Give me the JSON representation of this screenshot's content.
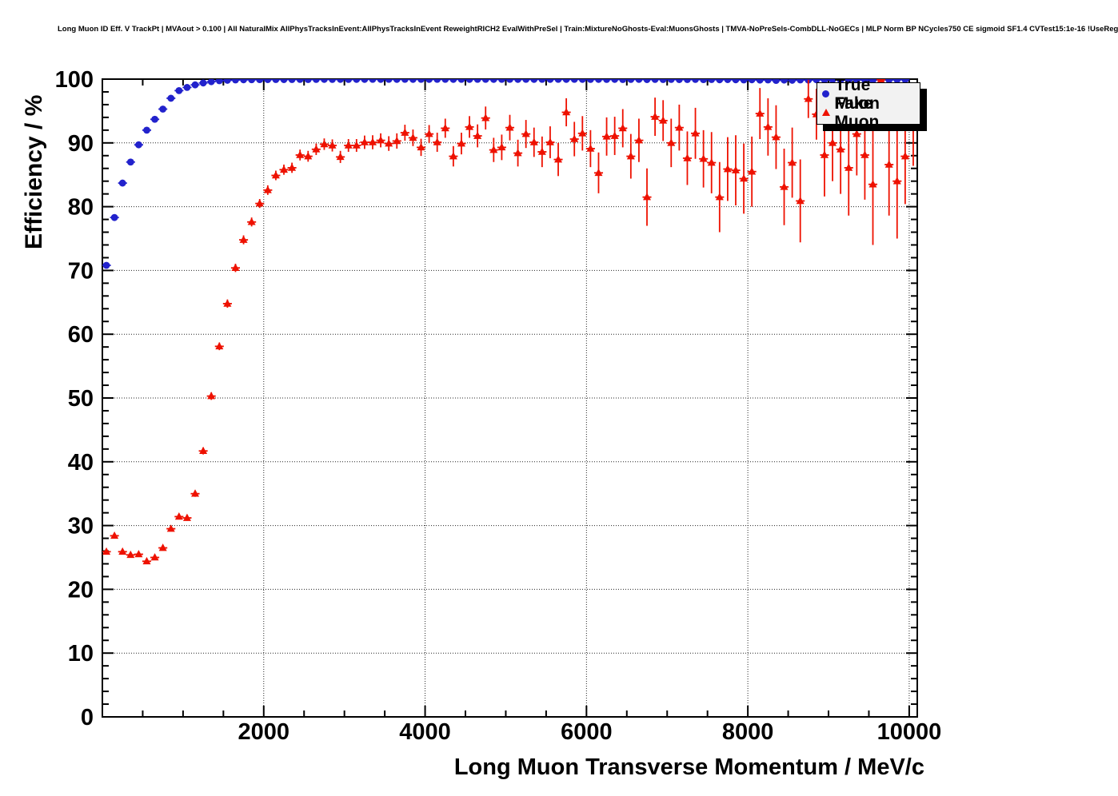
{
  "header": {
    "title": "Long Muon ID Eff. V TrackPt | MVAout > 0.100 | All NaturalMix AllPhysTracksInEvent:AllPhysTracksInEvent ReweightRICH2 EvalWithPreSel | Train:MixtureNoGhosts-Eval:MuonsGhosts | TMVA-NoPreSels-CombDLL-NoGECs | MLP Norm BP NCycles750 CE sigmoid SF1.4 CVTest15:1e-16 !UseReg"
  },
  "chart_data": {
    "type": "scatter",
    "title": "Long Muon ID Eff. V TrackPt | MVAout > 0.100 | All NaturalMix AllPhysTracksInEvent:AllPhysTracksInEvent ReweightRICH2 EvalWithPreSel | Train:MixtureNoGhosts-Eval:MuonsGhosts | TMVA-NoPreSels-CombDLL-NoGECs | MLP Norm BP NCycles750 CE sigmoid SF1.4 CVTest15:1e-16 !UseReg",
    "xlabel": "Long Muon Transverse Momentum / MeV/c",
    "ylabel": "Efficiency / %",
    "xlim": [
      0,
      10100
    ],
    "ylim": [
      0,
      100
    ],
    "x_major_ticks": [
      2000,
      4000,
      6000,
      8000,
      10000
    ],
    "x_minor_step": 500,
    "y_major_step": 10,
    "y_minor_step": 2,
    "grid": "dotted at major ticks, both axes",
    "legend": {
      "position": "top-right",
      "entries": [
        {
          "label": "True Muon",
          "marker": "circle",
          "color": "#2222cc"
        },
        {
          "label": "Fake Muon",
          "marker": "triangle",
          "color": "#ee1100"
        }
      ]
    },
    "series": [
      {
        "name": "True Muon",
        "marker": "circle",
        "color": "#2222cc",
        "bin_width": 100,
        "x": [
          50,
          150,
          250,
          350,
          450,
          550,
          650,
          750,
          850,
          950,
          1050,
          1150,
          1250,
          1350,
          1450,
          1550,
          1650,
          1750,
          1850,
          1950,
          2050,
          2150,
          2250,
          2350,
          2450,
          2550,
          2650,
          2750,
          2850,
          2950,
          3050,
          3150,
          3250,
          3350,
          3450,
          3550,
          3650,
          3750,
          3850,
          3950,
          4050,
          4150,
          4250,
          4350,
          4450,
          4550,
          4650,
          4750,
          4850,
          4950,
          5050,
          5150,
          5250,
          5350,
          5450,
          5550,
          5650,
          5750,
          5850,
          5950,
          6050,
          6150,
          6250,
          6350,
          6450,
          6550,
          6650,
          6750,
          6850,
          6950,
          7050,
          7150,
          7250,
          7350,
          7450,
          7550,
          7650,
          7750,
          7850,
          7950,
          8050,
          8150,
          8250,
          8350,
          8450,
          8550,
          8650,
          8750,
          8850,
          8950,
          9050,
          9150,
          9250,
          9350,
          9450,
          9550,
          9650,
          9750,
          9850,
          9950
        ],
        "y": [
          70.8,
          78.3,
          83.7,
          87.0,
          89.7,
          92.0,
          93.7,
          95.3,
          97.0,
          98.2,
          98.7,
          99.1,
          99.4,
          99.6,
          99.75,
          99.82,
          99.87,
          99.9,
          99.91,
          99.92,
          99.93,
          99.94,
          99.93,
          99.94,
          99.95,
          99.94,
          99.95,
          99.96,
          99.95,
          99.96,
          99.95,
          99.96,
          99.96,
          99.97,
          99.96,
          99.97,
          99.96,
          99.97,
          99.96,
          99.97,
          99.96,
          99.97,
          99.97,
          99.96,
          99.97,
          99.96,
          99.97,
          99.97,
          99.96,
          99.97,
          99.97,
          99.96,
          99.97,
          99.96,
          99.97,
          99.96,
          99.97,
          99.96,
          99.97,
          99.96,
          99.95,
          99.96,
          99.95,
          99.96,
          99.94,
          99.95,
          99.96,
          99.93,
          99.95,
          99.94,
          99.95,
          99.93,
          99.94,
          99.95,
          99.92,
          99.94,
          99.9,
          99.93,
          99.9,
          99.88,
          99.9,
          99.85,
          99.88,
          99.8,
          99.85,
          99.82,
          99.88,
          99.85,
          99.9,
          99.87,
          99.9,
          99.85,
          99.88,
          99.9,
          99.87,
          99.85,
          99.9,
          99.88,
          99.9,
          99.92
        ],
        "yerr": [
          0.5,
          0.45,
          0.4,
          0.35,
          0.3,
          0.27,
          0.24,
          0.2,
          0.17,
          0.14,
          0.12,
          0.1,
          0.09,
          0.08,
          0.07,
          0.06,
          0.05,
          0.05,
          0.05,
          0.05,
          0.05,
          0.05,
          0.05,
          0.05,
          0.05,
          0.05,
          0.05,
          0.05,
          0.05,
          0.05,
          0.05,
          0.05,
          0.05,
          0.05,
          0.05,
          0.05,
          0.05,
          0.05,
          0.05,
          0.05,
          0.05,
          0.05,
          0.05,
          0.05,
          0.05,
          0.05,
          0.05,
          0.05,
          0.05,
          0.05,
          0.05,
          0.05,
          0.05,
          0.05,
          0.05,
          0.05,
          0.05,
          0.05,
          0.05,
          0.05,
          0.05,
          0.05,
          0.05,
          0.05,
          0.05,
          0.05,
          0.05,
          0.05,
          0.05,
          0.05,
          0.05,
          0.05,
          0.05,
          0.05,
          0.05,
          0.05,
          0.05,
          0.05,
          0.05,
          0.05,
          0.05,
          0.05,
          0.05,
          0.05,
          0.05,
          0.05,
          0.05,
          0.05,
          0.05,
          0.05,
          0.05,
          0.05,
          0.05,
          0.05,
          0.05,
          0.05,
          0.05,
          0.05,
          0.05,
          0.05
        ]
      },
      {
        "name": "Fake Muon",
        "marker": "triangle",
        "color": "#ee1100",
        "bin_width": 100,
        "x": [
          50,
          150,
          250,
          350,
          450,
          550,
          650,
          750,
          850,
          950,
          1050,
          1150,
          1250,
          1350,
          1450,
          1550,
          1650,
          1750,
          1850,
          1950,
          2050,
          2150,
          2250,
          2350,
          2450,
          2550,
          2650,
          2750,
          2850,
          2950,
          3050,
          3150,
          3250,
          3350,
          3450,
          3550,
          3650,
          3750,
          3850,
          3950,
          4050,
          4150,
          4250,
          4350,
          4450,
          4550,
          4650,
          4750,
          4850,
          4950,
          5050,
          5150,
          5250,
          5350,
          5450,
          5550,
          5650,
          5750,
          5850,
          5950,
          6050,
          6150,
          6250,
          6350,
          6450,
          6550,
          6650,
          6750,
          6850,
          6950,
          7050,
          7150,
          7250,
          7350,
          7450,
          7550,
          7650,
          7750,
          7850,
          7950,
          8050,
          8150,
          8250,
          8350,
          8450,
          8550,
          8650,
          8750,
          8850,
          8950,
          9050,
          9150,
          9250,
          9350,
          9450,
          9550,
          9650,
          9750,
          9850,
          9950,
          10050
        ],
        "y": [
          25.9,
          28.4,
          25.9,
          25.4,
          25.5,
          24.4,
          25.0,
          26.5,
          29.5,
          31.4,
          31.2,
          35.0,
          41.7,
          50.3,
          58.1,
          64.8,
          70.4,
          74.8,
          77.6,
          80.5,
          82.6,
          84.9,
          85.8,
          86.1,
          88.1,
          87.9,
          89.0,
          89.8,
          89.6,
          87.8,
          89.6,
          89.6,
          90.1,
          90.1,
          90.4,
          89.9,
          90.3,
          91.6,
          90.8,
          89.3,
          91.4,
          90.1,
          92.3,
          87.9,
          89.9,
          92.5,
          91.1,
          93.9,
          88.9,
          89.3,
          92.4,
          88.4,
          91.4,
          90.1,
          88.6,
          90.1,
          87.4,
          94.8,
          90.6,
          91.5,
          89.1,
          85.3,
          91.0,
          91.1,
          92.3,
          87.9,
          90.4,
          81.5,
          94.1,
          93.5,
          90.0,
          92.4,
          87.6,
          91.5,
          87.5,
          86.9,
          81.5,
          85.9,
          85.7,
          84.4,
          85.5,
          94.6,
          92.5,
          90.9,
          83.1,
          86.9,
          80.9,
          96.9,
          94.5,
          88.1,
          90.0,
          89.0,
          86.1,
          91.4,
          88.1,
          83.5,
          99.9,
          86.6,
          84.0,
          87.9,
          92.4
        ],
        "yerr": [
          0.4,
          0.4,
          0.35,
          0.35,
          0.35,
          0.35,
          0.35,
          0.4,
          0.4,
          0.45,
          0.45,
          0.5,
          0.55,
          0.6,
          0.6,
          0.65,
          0.65,
          0.7,
          0.7,
          0.7,
          0.75,
          0.75,
          0.8,
          0.8,
          0.85,
          0.85,
          0.9,
          0.9,
          0.95,
          0.95,
          1.0,
          1.0,
          1.05,
          1.1,
          1.1,
          1.15,
          1.2,
          1.25,
          1.3,
          1.35,
          1.4,
          1.5,
          1.5,
          1.6,
          1.7,
          1.7,
          1.8,
          1.8,
          1.9,
          2.0,
          2.0,
          2.1,
          2.2,
          2.3,
          2.4,
          2.5,
          2.6,
          2.2,
          2.7,
          2.7,
          2.9,
          3.2,
          3.0,
          3.0,
          3.0,
          3.5,
          3.4,
          4.5,
          3.0,
          3.2,
          3.8,
          3.6,
          4.2,
          4.0,
          4.5,
          4.8,
          5.5,
          5.0,
          5.5,
          5.5,
          5.5,
          4.0,
          4.5,
          5.0,
          6.0,
          5.5,
          6.5,
          3.0,
          4.0,
          6.5,
          6.0,
          7.0,
          7.5,
          6.5,
          7.0,
          9.5,
          1.5,
          8.0,
          9.0,
          7.5,
          6.0
        ]
      }
    ]
  }
}
